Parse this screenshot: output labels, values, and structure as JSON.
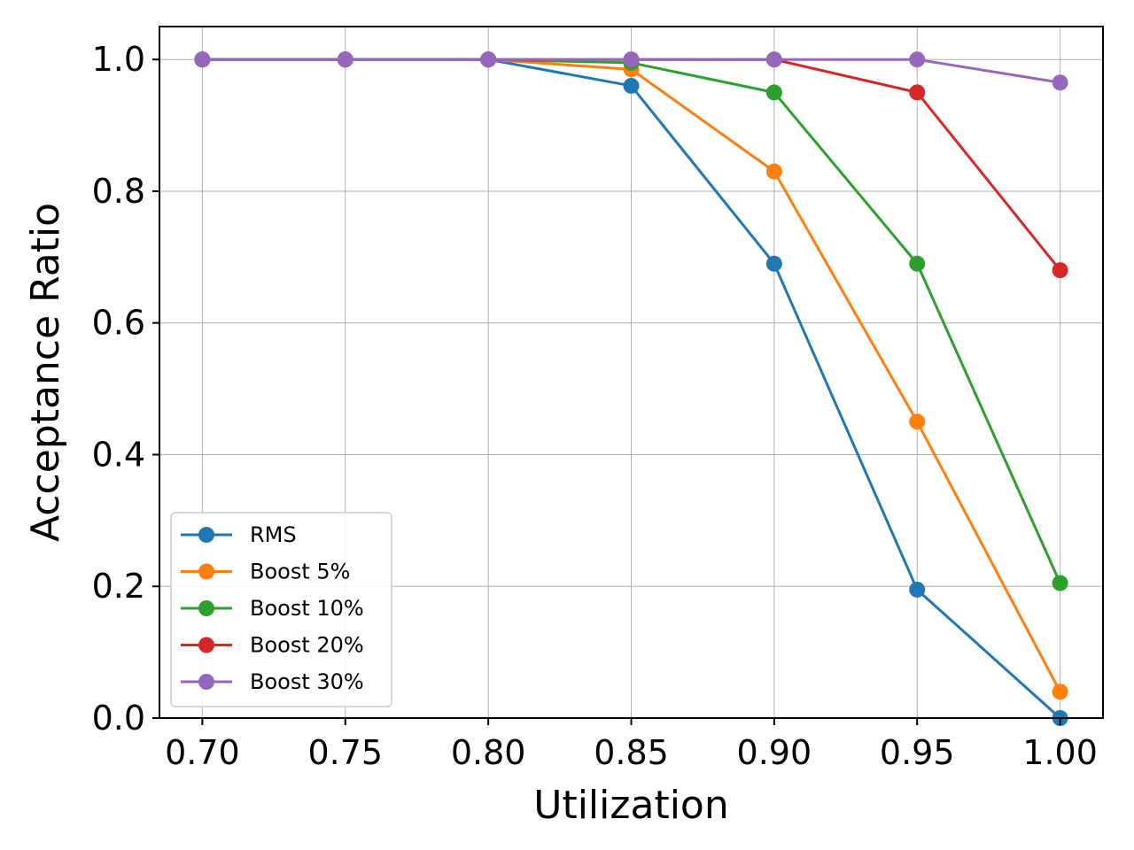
{
  "chart_data": {
    "type": "line",
    "title": "",
    "xlabel": "Utilization",
    "ylabel": "Acceptance Ratio",
    "x": [
      0.7,
      0.75,
      0.8,
      0.85,
      0.9,
      0.95,
      1.0
    ],
    "x_tick_labels": [
      "0.70",
      "0.75",
      "0.80",
      "0.85",
      "0.90",
      "0.95",
      "1.00"
    ],
    "y_ticks": [
      0.0,
      0.2,
      0.4,
      0.6,
      0.8,
      1.0
    ],
    "y_tick_labels": [
      "0.0",
      "0.2",
      "0.4",
      "0.6",
      "0.8",
      "1.0"
    ],
    "xlim": [
      0.685,
      1.015
    ],
    "ylim": [
      0.0,
      1.05
    ],
    "grid": true,
    "legend_position": "bottom-left",
    "series": [
      {
        "name": "RMS",
        "color": "#1f77b4",
        "values": [
          1.0,
          1.0,
          1.0,
          0.96,
          0.69,
          0.195,
          0.0
        ]
      },
      {
        "name": "Boost 5%",
        "color": "#ff7f0e",
        "values": [
          1.0,
          1.0,
          1.0,
          0.985,
          0.83,
          0.45,
          0.04
        ]
      },
      {
        "name": "Boost 10%",
        "color": "#2ca02c",
        "values": [
          1.0,
          1.0,
          1.0,
          0.995,
          0.95,
          0.69,
          0.205
        ]
      },
      {
        "name": "Boost 20%",
        "color": "#d62728",
        "values": [
          1.0,
          1.0,
          1.0,
          1.0,
          1.0,
          0.95,
          0.68
        ]
      },
      {
        "name": "Boost 30%",
        "color": "#9467bd",
        "values": [
          1.0,
          1.0,
          1.0,
          1.0,
          1.0,
          1.0,
          0.965
        ]
      }
    ]
  }
}
